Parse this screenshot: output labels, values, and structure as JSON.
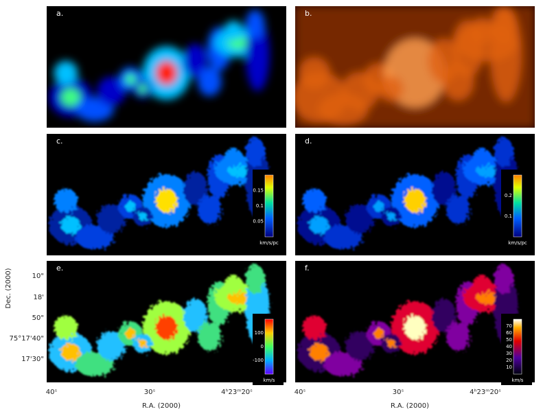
{
  "panels": [
    {
      "label": "a."
    },
    {
      "label": "b."
    },
    {
      "label": "c.",
      "colorbar": {
        "ticks": [
          "0.15",
          "0.1",
          "0.05"
        ],
        "unit": "km/s/pc"
      }
    },
    {
      "label": "d.",
      "colorbar": {
        "ticks": [
          "0.2",
          "0.1"
        ],
        "unit": "km/s/pc"
      }
    },
    {
      "label": "e.",
      "colorbar": {
        "ticks": [
          "100",
          "0",
          "-100"
        ],
        "unit": "km/s"
      }
    },
    {
      "label": "f.",
      "colorbar": {
        "ticks": [
          "70",
          "60",
          "50",
          "40",
          "30",
          "20",
          "10"
        ],
        "unit": "km/s"
      }
    }
  ],
  "axes": {
    "y_label": "Dec. (2000)",
    "y_ticks": [
      "10\"",
      "18'",
      "50\"",
      "75°17'40\"",
      "17'30\""
    ],
    "x_label": "R.A. (2000)",
    "x_ticks": [
      "40ˢ",
      "30ˢ",
      "4ʰ23ᵐ20ˢ"
    ]
  }
}
